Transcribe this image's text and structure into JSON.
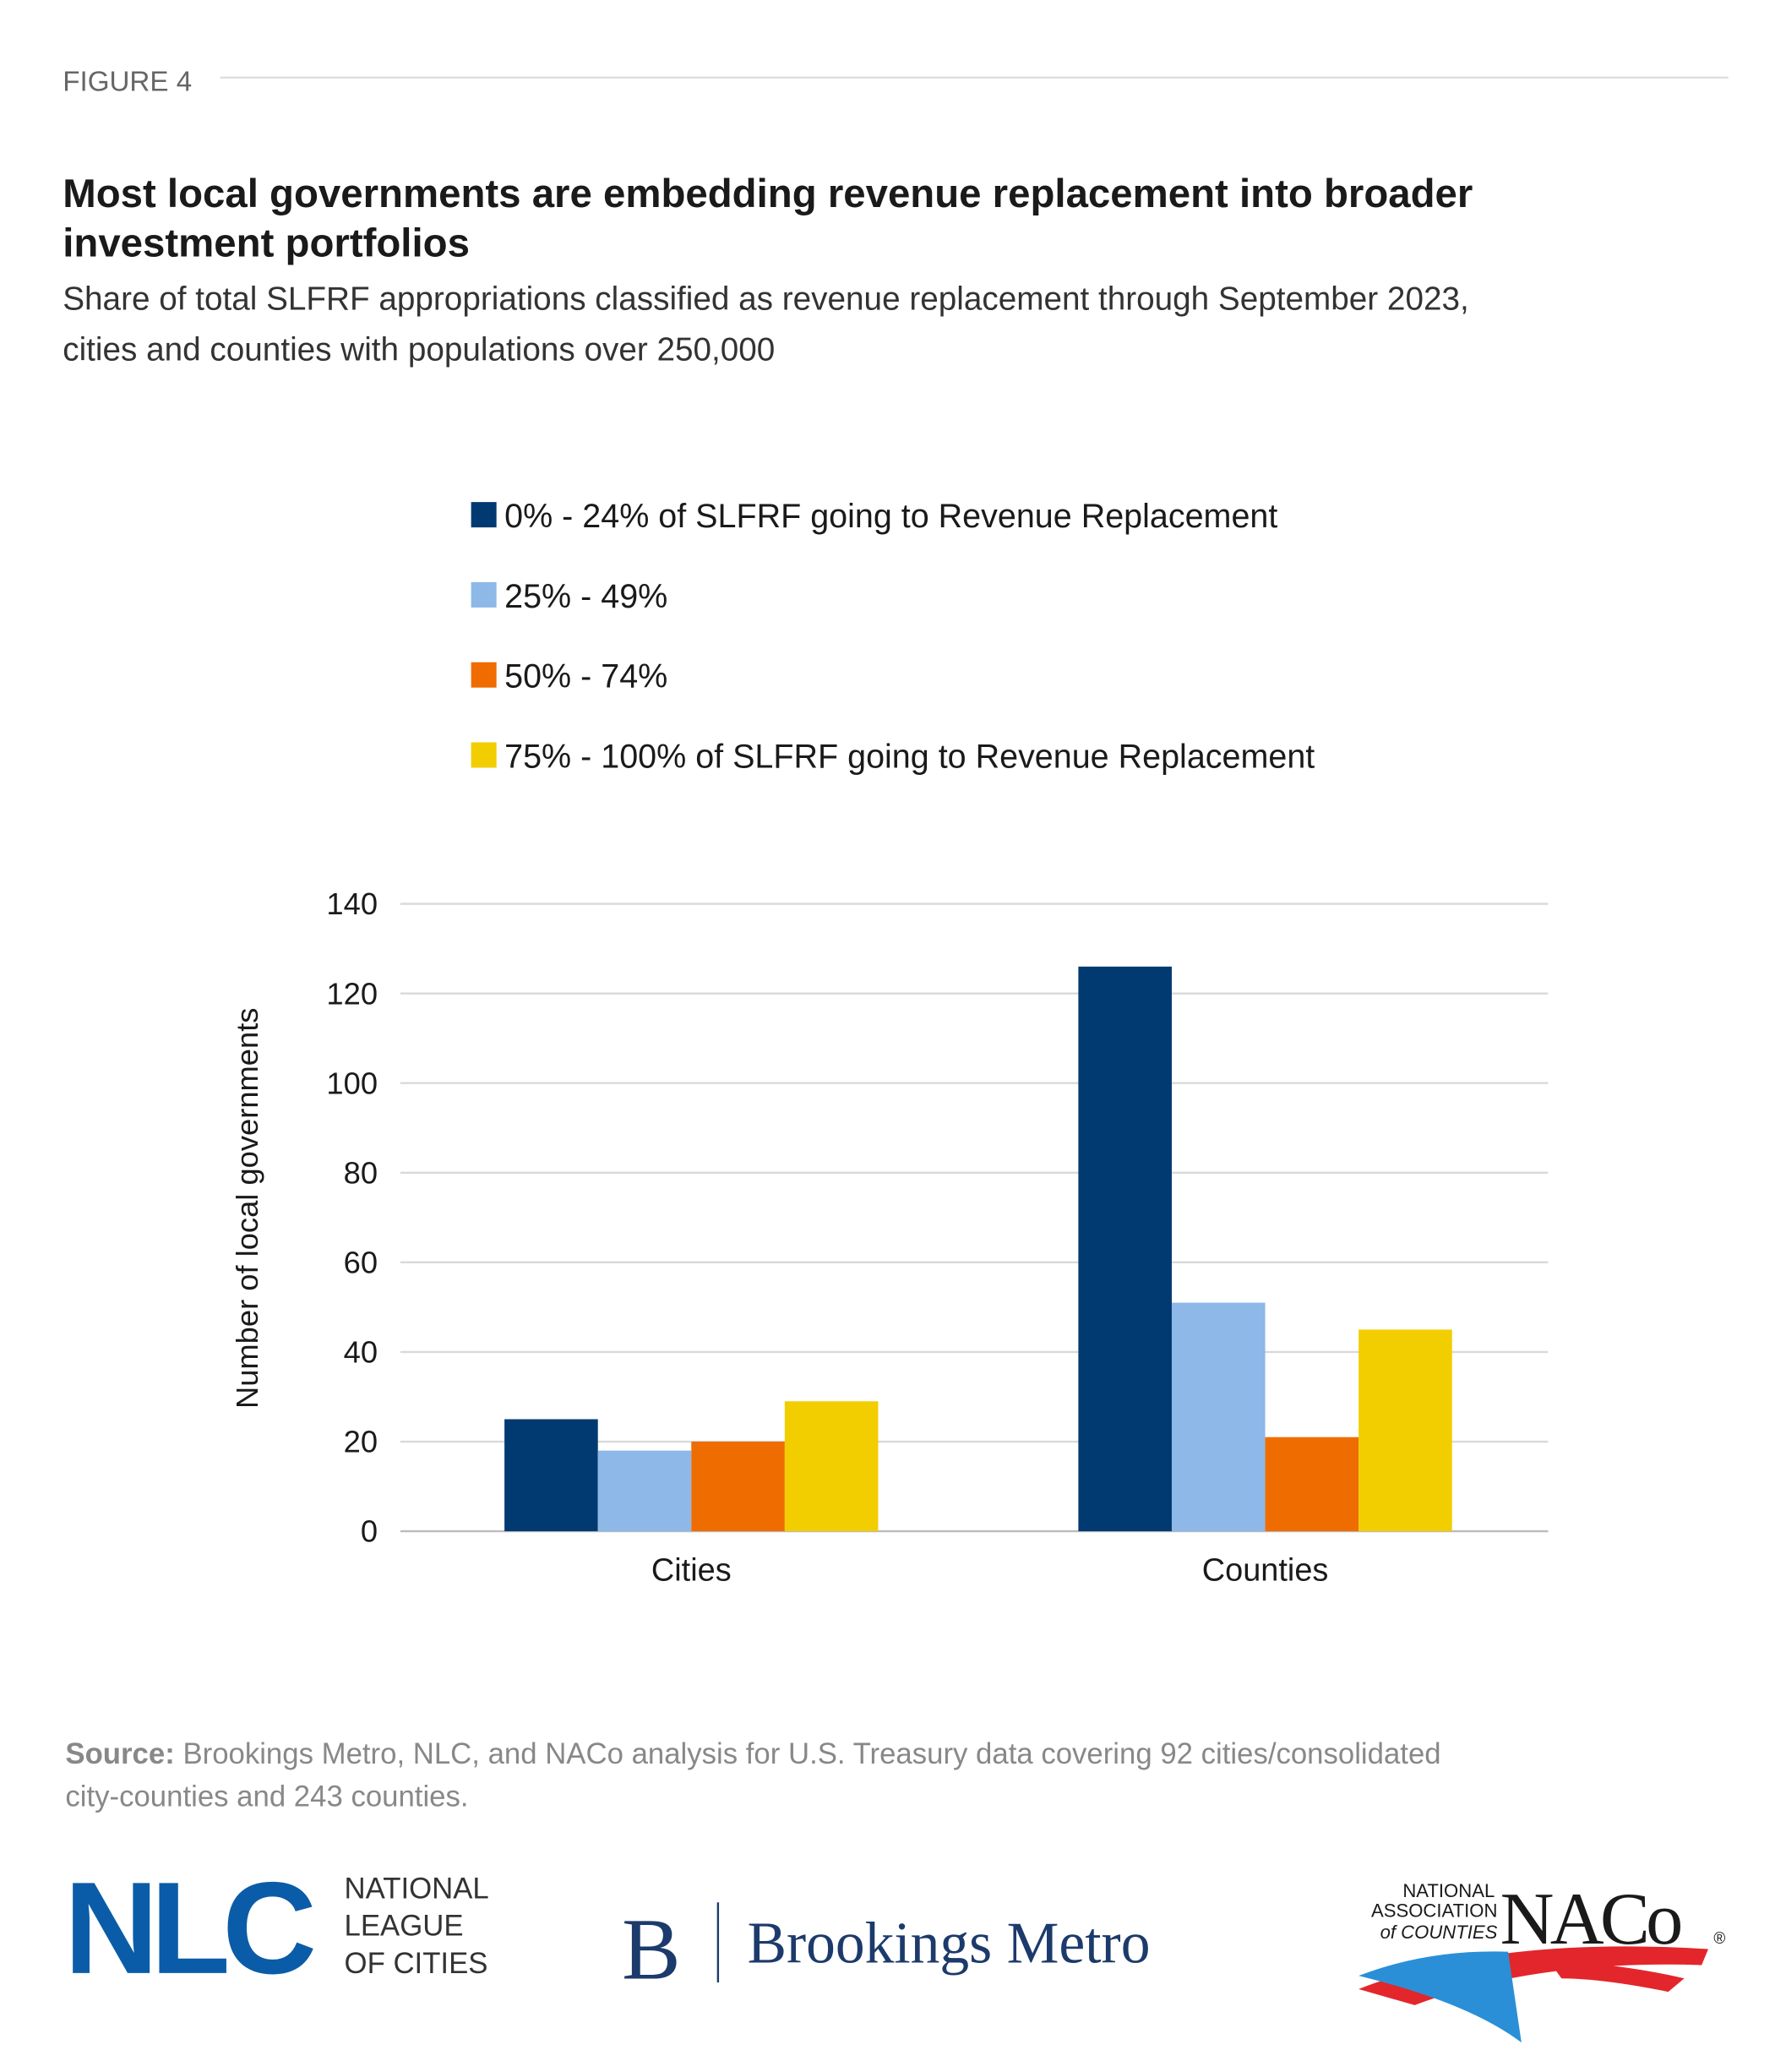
{
  "figure_label": "FIGURE 4",
  "chart_data": {
    "type": "bar",
    "title": [
      "Most local governments are embedding revenue replacement into broader",
      "investment portfolios"
    ],
    "subtitle": [
      "Share of total SLFRF appropriations classified as revenue replacement through September 2023,",
      "cities and counties with populations over 250,000"
    ],
    "y_label": "Number of local governments",
    "categories": [
      "Cities",
      "Counties"
    ],
    "series": [
      {
        "name": "0% - 24% of SLFRF going to Revenue Replacement",
        "color": "#003a70",
        "values": [
          25,
          126
        ]
      },
      {
        "name": "25% - 49%",
        "color": "#8db8e8",
        "values": [
          18,
          51
        ]
      },
      {
        "name": "50% - 74%",
        "color": "#ef6c00",
        "values": [
          20,
          21
        ]
      },
      {
        "name": "75% - 100% of SLFRF going to Revenue Replacement",
        "color": "#f2cd00",
        "values": [
          29,
          45
        ]
      }
    ],
    "ylim": [
      0,
      140
    ],
    "yticks": [
      0,
      20,
      40,
      60,
      80,
      100,
      120,
      140
    ],
    "grid": true,
    "legend": "top"
  },
  "source": {
    "label": "Source:",
    "text": [
      "Brookings Metro, NLC, and NACo analysis for U.S. Treasury data covering 92 cities/consolidated",
      "city-counties and 243 counties."
    ]
  },
  "logos": {
    "nlc": {
      "mark": "NLC",
      "lines": [
        "NATIONAL",
        "LEAGUE",
        "OF CITIES"
      ]
    },
    "brookings": {
      "mark": "B",
      "name": "Brookings Metro"
    },
    "naco": {
      "lines": [
        "NATIONAL",
        "ASSOCIATION",
        "of COUNTIES"
      ],
      "mark": "NACo",
      "reg": "®"
    }
  }
}
